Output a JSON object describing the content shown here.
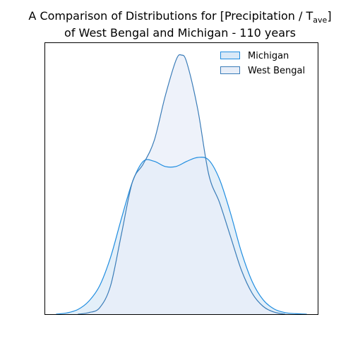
{
  "chart_data": {
    "type": "area",
    "title": {
      "prefix": "A Comparison of Distributions for [Precipitation / T",
      "subscript": "ave",
      "suffix": "]",
      "line2": "of West Bengal and Michigan - 110 years"
    },
    "xlabel": "",
    "ylabel": "",
    "grid": false,
    "legend_position": "upper-right",
    "xlim": [
      0,
      1
    ],
    "ylim": [
      0,
      1
    ],
    "series": [
      {
        "name": "Michigan",
        "line_color": "#1f8de0",
        "fill_color": "#d9e9f7",
        "x": [
          0.04,
          0.08,
          0.12,
          0.16,
          0.2,
          0.24,
          0.28,
          0.32,
          0.36,
          0.4,
          0.44,
          0.48,
          0.52,
          0.56,
          0.6,
          0.64,
          0.68,
          0.72,
          0.76,
          0.8,
          0.84,
          0.88,
          0.92,
          0.96
        ],
        "values": [
          0.0,
          0.005,
          0.018,
          0.05,
          0.11,
          0.22,
          0.37,
          0.51,
          0.59,
          0.59,
          0.57,
          0.57,
          0.59,
          0.605,
          0.595,
          0.52,
          0.39,
          0.24,
          0.125,
          0.055,
          0.02,
          0.006,
          0.002,
          0.0
        ]
      },
      {
        "name": "West Bengal",
        "line_color": "#3a7cb8",
        "fill_color": "#e8eef8",
        "x": [
          0.12,
          0.16,
          0.2,
          0.24,
          0.28,
          0.32,
          0.36,
          0.4,
          0.44,
          0.48,
          0.5,
          0.52,
          0.56,
          0.6,
          0.64,
          0.68,
          0.72,
          0.76,
          0.8,
          0.84,
          0.88
        ],
        "values": [
          0.0,
          0.006,
          0.025,
          0.11,
          0.31,
          0.51,
          0.58,
          0.67,
          0.84,
          0.98,
          1.0,
          0.97,
          0.79,
          0.54,
          0.43,
          0.3,
          0.17,
          0.08,
          0.03,
          0.008,
          0.0
        ]
      }
    ]
  }
}
